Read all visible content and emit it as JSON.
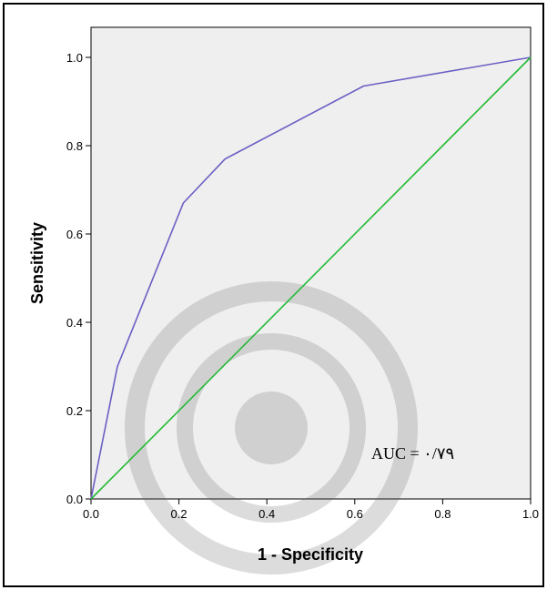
{
  "chart_data": {
    "type": "line",
    "title": "",
    "xlabel": "1 - Specificity",
    "ylabel": "Sensitivity",
    "xlim": [
      0,
      1
    ],
    "ylim": [
      0,
      1
    ],
    "x_ticks": [
      "0.0",
      "0.2",
      "0.4",
      "0.6",
      "0.8",
      "1.0"
    ],
    "y_ticks": [
      "0.0",
      "0.2",
      "0.4",
      "0.6",
      "0.8",
      "1.0"
    ],
    "grid": false,
    "annotation": "AUC = ۰/۷۹",
    "series": [
      {
        "color": "#6a5fc4",
        "x": [
          0.0,
          0.06,
          0.21,
          0.305,
          0.62,
          1.0
        ],
        "y": [
          0.0,
          0.3,
          0.67,
          0.77,
          0.935,
          1.0
        ]
      },
      {
        "color": "#22bb33",
        "x": [
          0.0,
          1.0
        ],
        "y": [
          0.0,
          1.0
        ]
      }
    ]
  }
}
